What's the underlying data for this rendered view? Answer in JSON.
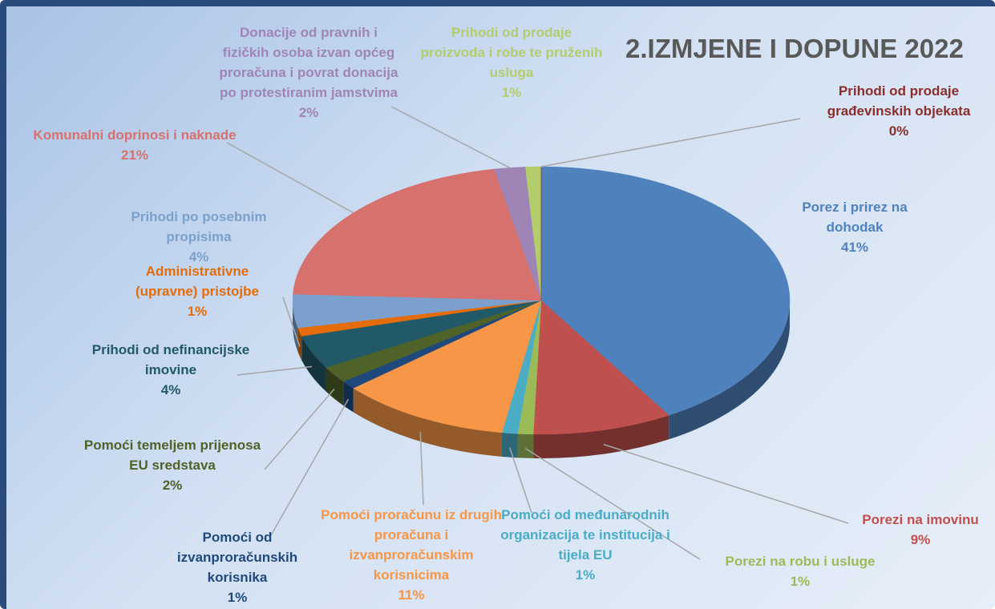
{
  "chart_data": {
    "type": "pie",
    "title": "2.IZMJENE I DOPUNE 2022",
    "categories": [
      "Porez i prirez na dohodak",
      "Porezi na imovinu",
      "Porezi na robu i usluge",
      "Pomoći od međunarodnih organizacija te institucija i tijela EU",
      "Pomoći proračunu iz drugih proračuna i izvanproračunskim korisnicima",
      "Pomoći od izvanproračunskih korisnika",
      "Pomoći temeljem prijenosa EU sredstava",
      "Prihodi od nefinancijske imovine",
      "Administrativne (upravne) pristojbe",
      "Prihodi po posebnim propisima",
      "Komunalni doprinosi i naknade",
      "Donacije od pravnih i fizičkih osoba izvan općeg proračuna i povrat donacija po protestiranim jamstvima",
      "Prihodi od prodaje proizvoda i robe te pruženih usluga",
      "Prihodi od prodaje građevinskih objekata"
    ],
    "values": [
      41,
      9,
      1,
      1,
      11,
      1,
      2,
      4,
      1,
      4,
      21,
      2,
      1,
      0
    ],
    "value_labels": [
      "41%",
      "9%",
      "1%",
      "1%",
      "11%",
      "1%",
      "2%",
      "4%",
      "1%",
      "4%",
      "21%",
      "2%",
      "1%",
      "0%"
    ],
    "colors": [
      "#4f81bd",
      "#c0504d",
      "#9bbb59",
      "#4bacc6",
      "#f79646",
      "#1f497d",
      "#4f6228",
      "#215968",
      "#e46c0a",
      "#7ba0cd",
      "#d6716e",
      "#9f85b5",
      "#b3cd6c",
      "#8b2e2b"
    ]
  }
}
